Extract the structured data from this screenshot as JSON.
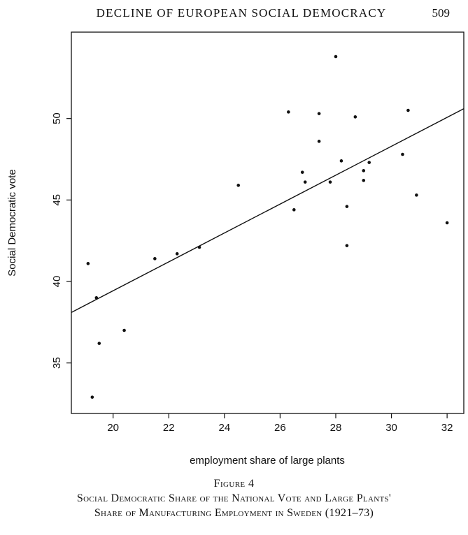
{
  "header": {
    "running_head": "Decline of European Social Democracy",
    "page_number": "509"
  },
  "caption": {
    "label": "Figure 4",
    "title_line1": "Social Democratic Share of the National Vote and Large Plants'",
    "title_line2": "Share of Manufacturing Employment in Sweden (1921–73)"
  },
  "chart_data": {
    "type": "scatter",
    "title": "",
    "xlabel": "employment share of large plants",
    "ylabel": "Social Democratic vote",
    "xlim": [
      18.5,
      32.6
    ],
    "ylim": [
      31.9,
      55.3
    ],
    "x_ticks": [
      20,
      22,
      24,
      26,
      28,
      30,
      32
    ],
    "y_ticks": [
      35,
      40,
      45,
      50
    ],
    "grid": false,
    "legend": "none",
    "points": [
      {
        "x": 19.1,
        "y": 41.1
      },
      {
        "x": 19.4,
        "y": 39.0
      },
      {
        "x": 19.5,
        "y": 36.2
      },
      {
        "x": 19.25,
        "y": 32.9
      },
      {
        "x": 20.4,
        "y": 37.0
      },
      {
        "x": 21.5,
        "y": 41.4
      },
      {
        "x": 22.3,
        "y": 41.7
      },
      {
        "x": 23.1,
        "y": 42.1
      },
      {
        "x": 24.5,
        "y": 45.9
      },
      {
        "x": 26.3,
        "y": 50.4
      },
      {
        "x": 26.5,
        "y": 44.4
      },
      {
        "x": 26.8,
        "y": 46.7
      },
      {
        "x": 26.9,
        "y": 46.1
      },
      {
        "x": 27.4,
        "y": 50.3
      },
      {
        "x": 27.4,
        "y": 48.6
      },
      {
        "x": 27.8,
        "y": 46.1
      },
      {
        "x": 28.0,
        "y": 53.8
      },
      {
        "x": 28.2,
        "y": 47.4
      },
      {
        "x": 28.4,
        "y": 44.6
      },
      {
        "x": 28.4,
        "y": 42.2
      },
      {
        "x": 28.7,
        "y": 50.1
      },
      {
        "x": 29.0,
        "y": 46.8
      },
      {
        "x": 29.0,
        "y": 46.2
      },
      {
        "x": 29.2,
        "y": 47.3
      },
      {
        "x": 30.4,
        "y": 47.8
      },
      {
        "x": 30.6,
        "y": 50.5
      },
      {
        "x": 30.9,
        "y": 45.3
      },
      {
        "x": 32.0,
        "y": 43.6
      }
    ],
    "fit_line": {
      "x": [
        18.5,
        32.6
      ],
      "y": [
        38.1,
        50.6
      ]
    }
  }
}
